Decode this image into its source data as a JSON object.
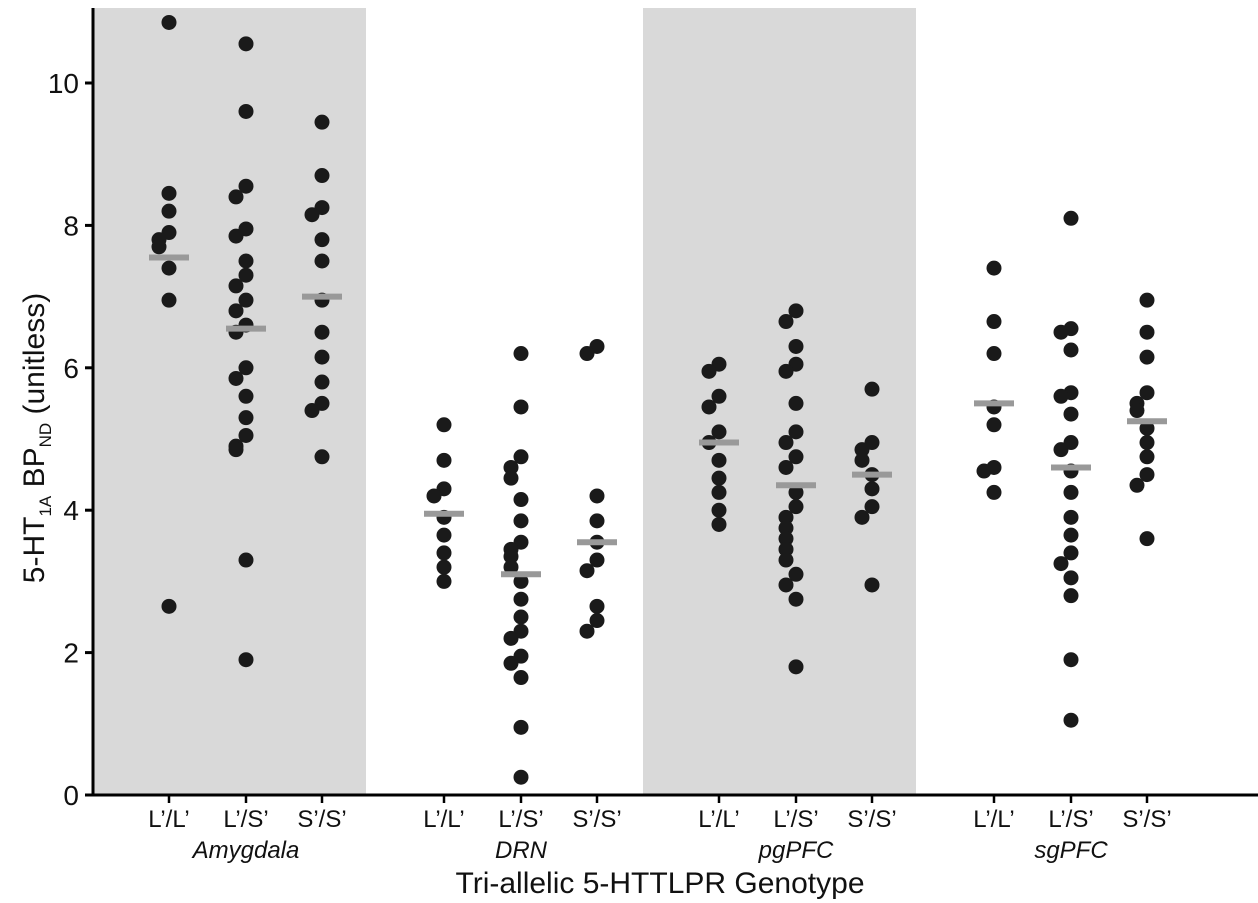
{
  "chart_data": {
    "type": "scatter",
    "xlabel": "Tri-allelic 5-HTTLPR Genotype",
    "ylabel": {
      "prefix": "5-HT",
      "sub1": "1A",
      "mid": " BP",
      "sub2": "ND",
      "suffix": " (unitless)"
    },
    "ylim": [
      0,
      11
    ],
    "yticks": [
      0,
      2,
      4,
      6,
      8,
      10
    ],
    "colors": {
      "shade": "#d9d9d9",
      "point": "#1a1a1a",
      "mean": "#999999",
      "axis": "#000000"
    },
    "regions": [
      {
        "name": "Amygdala",
        "shaded": true,
        "groups": [
          {
            "label": "L’/L’",
            "mean": 7.55,
            "values": [
              10.85,
              8.45,
              8.2,
              7.9,
              7.8,
              7.7,
              7.4,
              6.95,
              2.65
            ]
          },
          {
            "label": "L’/S’",
            "mean": 6.55,
            "values": [
              10.55,
              9.6,
              8.55,
              8.4,
              7.95,
              7.85,
              7.5,
              7.3,
              7.15,
              6.95,
              6.8,
              6.6,
              6.5,
              6.0,
              5.85,
              5.6,
              5.3,
              5.05,
              4.9,
              4.85,
              3.3,
              1.9
            ]
          },
          {
            "label": "S’/S’",
            "mean": 7.0,
            "values": [
              9.45,
              8.7,
              8.25,
              8.15,
              7.8,
              7.5,
              6.95,
              6.5,
              6.15,
              5.8,
              5.5,
              5.4,
              4.75
            ]
          }
        ]
      },
      {
        "name": "DRN",
        "shaded": false,
        "groups": [
          {
            "label": "L’/L’",
            "mean": 3.95,
            "values": [
              5.2,
              4.7,
              4.3,
              4.2,
              3.9,
              3.65,
              3.4,
              3.2,
              3.0
            ]
          },
          {
            "label": "L’/S’",
            "mean": 3.1,
            "values": [
              6.2,
              5.45,
              4.75,
              4.6,
              4.45,
              4.15,
              3.85,
              3.55,
              3.45,
              3.35,
              3.2,
              3.0,
              2.75,
              2.5,
              2.3,
              2.2,
              1.95,
              1.85,
              1.65,
              0.95,
              0.25
            ]
          },
          {
            "label": "S’/S’",
            "mean": 3.55,
            "values": [
              6.3,
              6.2,
              4.2,
              3.85,
              3.55,
              3.3,
              3.15,
              2.65,
              2.45,
              2.3
            ]
          }
        ]
      },
      {
        "name": "pgPFC",
        "shaded": true,
        "groups": [
          {
            "label": "L’/L’",
            "mean": 4.95,
            "values": [
              6.05,
              5.95,
              5.6,
              5.45,
              5.1,
              4.95,
              4.7,
              4.45,
              4.25,
              4.0,
              3.8
            ]
          },
          {
            "label": "L’/S’",
            "mean": 4.35,
            "values": [
              6.8,
              6.65,
              6.3,
              6.05,
              5.95,
              5.5,
              5.1,
              4.95,
              4.75,
              4.6,
              4.25,
              4.05,
              3.9,
              3.75,
              3.6,
              3.45,
              3.3,
              3.1,
              2.95,
              2.75,
              1.8
            ]
          },
          {
            "label": "S’/S’",
            "mean": 4.5,
            "values": [
              5.7,
              4.95,
              4.85,
              4.7,
              4.5,
              4.3,
              4.05,
              3.9,
              2.95
            ]
          }
        ]
      },
      {
        "name": "sgPFC",
        "shaded": false,
        "groups": [
          {
            "label": "L’/L’",
            "mean": 5.5,
            "values": [
              7.4,
              6.65,
              6.2,
              5.45,
              5.2,
              4.6,
              4.55,
              4.25
            ]
          },
          {
            "label": "L’/S’",
            "mean": 4.6,
            "values": [
              8.1,
              6.55,
              6.5,
              6.25,
              5.65,
              5.6,
              5.35,
              4.95,
              4.85,
              4.55,
              4.25,
              3.9,
              3.65,
              3.4,
              3.25,
              3.05,
              2.8,
              1.9,
              1.05
            ]
          },
          {
            "label": "S’/S’",
            "mean": 5.25,
            "values": [
              6.95,
              6.5,
              6.15,
              5.65,
              5.5,
              5.4,
              5.15,
              4.95,
              4.75,
              4.5,
              4.35,
              3.6
            ]
          }
        ]
      }
    ]
  }
}
